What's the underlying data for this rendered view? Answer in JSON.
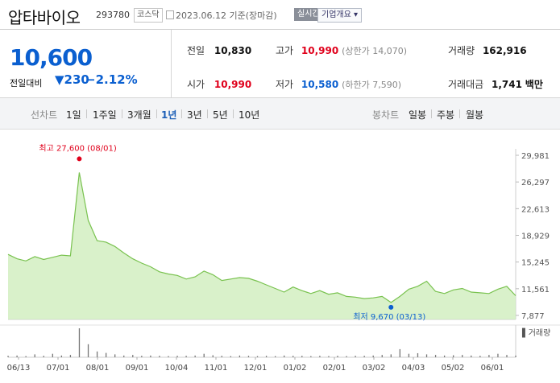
{
  "header": {
    "name": "압타바이오",
    "code": "293780",
    "market": "코스닥",
    "date": "2023.06.12 기준(장마감)",
    "realtime": "실시간",
    "company_info": "기업개요"
  },
  "summary": {
    "price": "10,600",
    "change_label": "전일대비",
    "change_value": "230",
    "change_rate": "−2.12%",
    "prev_label": "전일",
    "prev_value": "10,830",
    "high_label": "고가",
    "high_value": "10,990",
    "upper_limit": "(상한가 14,070)",
    "volume_label": "거래량",
    "volume_value": "162,916",
    "open_label": "시가",
    "open_value": "10,990",
    "low_label": "저가",
    "low_value": "10,580",
    "lower_limit": "(하한가 7,590)",
    "amount_label": "거래대금",
    "amount_value": "1,741",
    "amount_unit": "백만"
  },
  "periods": {
    "line_label": "선차트",
    "items": [
      "1일",
      "1주일",
      "3개월",
      "1년",
      "3년",
      "5년",
      "10년"
    ],
    "selected": "1년",
    "candle_label": "봉차트",
    "candle_items": [
      "일봉",
      "주봉",
      "월봉"
    ]
  },
  "colors": {
    "up": "#e0001b",
    "down": "#0a5fd0",
    "line": "#79c24f",
    "fill": "#cfeebd"
  },
  "chart_data": {
    "type": "area",
    "title": "",
    "ylim": [
      7877,
      29981
    ],
    "y_ticks": [
      "29,981",
      "26,297",
      "22,613",
      "18,929",
      "15,245",
      "11,561",
      "7,877"
    ],
    "x_labels": [
      "06/13",
      "07/01",
      "08/01",
      "09/01",
      "10/04",
      "11/01",
      "12/01",
      "01/02",
      "02/01",
      "03/02",
      "04/03",
      "05/02",
      "06/01"
    ],
    "max_annotation": "최고 27,600 (08/01)",
    "min_annotation": "최저 9,670 (03/13)",
    "volume_label": "거래량",
    "x": [
      "06/13",
      "06/20",
      "06/27",
      "07/01",
      "07/08",
      "07/15",
      "07/22",
      "07/29",
      "08/01",
      "08/05",
      "08/12",
      "08/19",
      "08/26",
      "09/01",
      "09/09",
      "09/16",
      "09/23",
      "09/30",
      "10/04",
      "10/11",
      "10/18",
      "10/25",
      "11/01",
      "11/08",
      "11/15",
      "11/22",
      "11/29",
      "12/01",
      "12/08",
      "12/15",
      "12/22",
      "12/29",
      "01/02",
      "01/09",
      "01/16",
      "01/23",
      "01/30",
      "02/01",
      "02/08",
      "02/15",
      "02/22",
      "03/02",
      "03/09",
      "03/13",
      "03/20",
      "03/27",
      "04/03",
      "04/10",
      "04/17",
      "04/24",
      "05/02",
      "05/09",
      "05/16",
      "05/23",
      "05/30",
      "06/01",
      "06/08",
      "06/12"
    ],
    "values": [
      16300,
      15700,
      15400,
      16000,
      15600,
      15900,
      16200,
      16100,
      27600,
      21000,
      18200,
      18000,
      17400,
      16500,
      15700,
      15100,
      14600,
      13900,
      13600,
      13400,
      12900,
      13200,
      14000,
      13500,
      12700,
      12900,
      13100,
      13000,
      12600,
      12100,
      11600,
      11100,
      11800,
      11300,
      10900,
      11300,
      10800,
      11000,
      10500,
      10400,
      10200,
      10300,
      10500,
      9670,
      10500,
      11500,
      11900,
      12600,
      11200,
      10900,
      11400,
      11600,
      11100,
      11000,
      10900,
      11500,
      11900,
      10600
    ],
    "volume": [
      0.05,
      0.06,
      0.04,
      0.1,
      0.05,
      0.12,
      0.06,
      0.08,
      1.0,
      0.45,
      0.2,
      0.15,
      0.1,
      0.06,
      0.08,
      0.05,
      0.06,
      0.05,
      0.04,
      0.05,
      0.05,
      0.06,
      0.12,
      0.07,
      0.05,
      0.04,
      0.06,
      0.05,
      0.04,
      0.05,
      0.04,
      0.06,
      0.05,
      0.05,
      0.04,
      0.05,
      0.04,
      0.05,
      0.04,
      0.05,
      0.05,
      0.06,
      0.08,
      0.1,
      0.28,
      0.12,
      0.14,
      0.1,
      0.08,
      0.06,
      0.07,
      0.08,
      0.06,
      0.05,
      0.08,
      0.12,
      0.08,
      0.06
    ]
  }
}
